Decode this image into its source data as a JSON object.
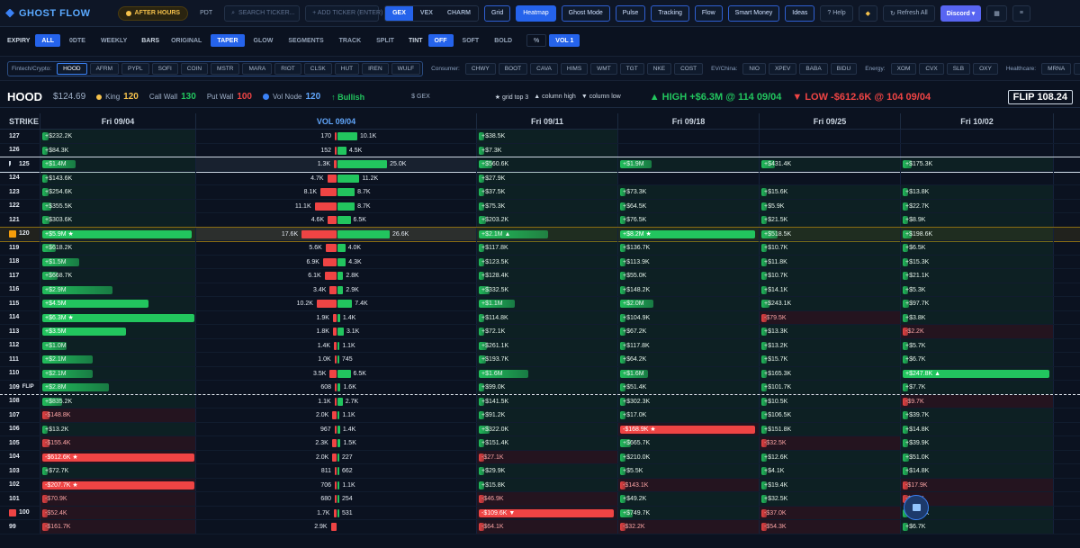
{
  "header": {
    "logo": "GHOST FLOW",
    "session_badge": "AFTER HOURS",
    "pdt": "PDT",
    "search_placeholder": "SEARCH TICKER...",
    "add_ticker": "+ ADD TICKER (ENTER)",
    "modes": [
      "GEX",
      "VEX",
      "CHARM"
    ],
    "active_mode": "GEX",
    "views": [
      "Grid",
      "Heatmap",
      "Ghost Mode",
      "Pulse",
      "Tracking",
      "Flow",
      "Smart Money",
      "Ideas"
    ],
    "active_view": "Heatmap",
    "help": "? Help",
    "refresh": "Refresh All",
    "discord": "Discord ▾"
  },
  "controls": {
    "expiry_label": "EXPIRY",
    "expiry": [
      "ALL",
      "0DTE",
      "WEEKLY"
    ],
    "bars_label": "BARS",
    "bars": [
      "ORIGINAL",
      "TAPER",
      "GLOW",
      "SEGMENTS",
      "TRACK",
      "SPLIT"
    ],
    "tint_label": "TINT",
    "tint": [
      "OFF",
      "SOFT",
      "BOLD"
    ],
    "pct": "%",
    "vol": "VOL 1"
  },
  "watchlist": {
    "fintech_label": "Fintech/Crypto:",
    "fintech": [
      "HOOD",
      "AFRM",
      "PYPL",
      "SOFI",
      "COIN",
      "MSTR",
      "MARA",
      "RIOT",
      "CLSK",
      "HUT",
      "IREN",
      "WULF"
    ],
    "consumer_label": "Consumer:",
    "consumer": [
      "CHWY",
      "BOOT",
      "CAVA",
      "HIMS",
      "WMT",
      "TGT",
      "NKE",
      "COST"
    ],
    "ev_label": "EV/China:",
    "ev": [
      "NIO",
      "XPEV",
      "BABA",
      "BIDU"
    ],
    "energy_label": "Energy:",
    "energy": [
      "XOM",
      "CVX",
      "SLB",
      "OXY"
    ],
    "health_label": "Healthcare:",
    "health": [
      "MRNA",
      "PFE"
    ]
  },
  "info": {
    "symbol": "HOOD",
    "price": "$124.69",
    "king_label": "King",
    "king": "120",
    "call_wall_label": "Call Wall",
    "call_wall": "130",
    "put_wall_label": "Put Wall",
    "put_wall": "100",
    "vol_node_label": "Vol Node",
    "vol_node": "120",
    "sentiment": "↑ Bullish",
    "gex_label": "$ GEX",
    "legend": [
      "★ grid top 3",
      "▲ column high",
      "▼ column low"
    ],
    "high": "▲ HIGH +$6.3M @ 114 09/04",
    "low": "▼ LOW -$612.6K @ 104 09/04",
    "flip": "FLIP 108.24"
  },
  "columns": {
    "strike": "STRIKE",
    "gex": "Fri 09/04",
    "vol": "VOL 09/04",
    "dates": [
      "Fri 09/11",
      "Fri 09/18",
      "Fri 09/25",
      "Fri 10/02"
    ]
  },
  "rows": [
    {
      "strike": "127",
      "gex": "+$232.2K",
      "gv": 0.04,
      "put": "170",
      "pv": 0.006,
      "call": "10.1K",
      "cv": 0.38,
      "d": [
        "+$38.5K",
        "",
        "",
        ""
      ],
      "dv": [
        0.02,
        0,
        0,
        0
      ]
    },
    {
      "strike": "126",
      "gex": "+$84.3K",
      "gv": 0.02,
      "put": "152",
      "pv": 0.006,
      "call": "4.5K",
      "cv": 0.17,
      "d": [
        "+$7.3K",
        "",
        "",
        ""
      ],
      "dv": [
        0.01,
        0,
        0,
        0
      ]
    },
    {
      "strike": "125",
      "gex": "+$1.4M",
      "gv": 0.22,
      "put": "1.3K",
      "pv": 0.05,
      "call": "25.0K",
      "cv": 0.95,
      "d": [
        "+$560.6K",
        "+$1.9M",
        "+$431.4K",
        "+$175.3K"
      ],
      "dv": [
        0.1,
        0.23,
        0.1,
        0.06
      ],
      "spot": true
    },
    {
      "strike": "124",
      "gex": "+$143.6K",
      "gv": 0.03,
      "put": "4.7K",
      "pv": 0.18,
      "call": "11.2K",
      "cv": 0.42,
      "d": [
        "+$27.9K",
        "",
        "",
        ""
      ],
      "dv": [
        0.01,
        0,
        0,
        0
      ]
    },
    {
      "strike": "123",
      "gex": "+$254.6K",
      "gv": 0.04,
      "put": "8.1K",
      "pv": 0.31,
      "call": "8.7K",
      "cv": 0.33,
      "d": [
        "+$37.5K",
        "+$73.3K",
        "+$15.6K",
        "+$13.8K"
      ],
      "dv": [
        0.02,
        0.03,
        0.02,
        0.02
      ]
    },
    {
      "strike": "122",
      "gex": "+$355.5K",
      "gv": 0.06,
      "put": "11.1K",
      "pv": 0.42,
      "call": "8.7K",
      "cv": 0.33,
      "d": [
        "+$75.3K",
        "+$64.5K",
        "+$5.9K",
        "+$22.7K"
      ],
      "dv": [
        0.02,
        0.02,
        0.01,
        0.02
      ]
    },
    {
      "strike": "121",
      "gex": "+$303.6K",
      "gv": 0.05,
      "put": "4.6K",
      "pv": 0.17,
      "call": "6.5K",
      "cv": 0.25,
      "d": [
        "+$203.2K",
        "+$76.5K",
        "+$21.5K",
        "+$8.9K"
      ],
      "dv": [
        0.05,
        0.03,
        0.02,
        0.01
      ]
    },
    {
      "strike": "120",
      "gex": "+$5.9M ★",
      "gv": 0.98,
      "put": "17.6K",
      "pv": 0.67,
      "call": "26.6K",
      "cv": 1.0,
      "d": [
        "+$2.1M ▲",
        "+$8.2M ★",
        "+$518.5K",
        "+$198.6K"
      ],
      "dv": [
        0.5,
        0.98,
        0.12,
        0.06
      ],
      "king": true
    },
    {
      "strike": "119",
      "gex": "+$618.2K",
      "gv": 0.09,
      "put": "5.6K",
      "pv": 0.21,
      "call": "4.0K",
      "cv": 0.15,
      "d": [
        "+$117.8K",
        "+$136.7K",
        "+$10.7K",
        "+$6.5K"
      ],
      "dv": [
        0.03,
        0.03,
        0.01,
        0.01
      ]
    },
    {
      "strike": "118",
      "gex": "+$1.5M",
      "gv": 0.24,
      "put": "6.9K",
      "pv": 0.26,
      "call": "4.3K",
      "cv": 0.16,
      "d": [
        "+$123.5K",
        "+$113.9K",
        "+$11.8K",
        "+$15.3K"
      ],
      "dv": [
        0.03,
        0.03,
        0.01,
        0.02
      ]
    },
    {
      "strike": "117",
      "gex": "+$668.7K",
      "gv": 0.1,
      "put": "6.1K",
      "pv": 0.23,
      "call": "2.8K",
      "cv": 0.11,
      "d": [
        "+$128.4K",
        "+$55.0K",
        "+$10.7K",
        "+$21.1K"
      ],
      "dv": [
        0.03,
        0.02,
        0.01,
        0.02
      ]
    },
    {
      "strike": "116",
      "gex": "+$2.9M",
      "gv": 0.46,
      "put": "3.4K",
      "pv": 0.13,
      "call": "2.9K",
      "cv": 0.11,
      "d": [
        "+$332.5K",
        "+$148.2K",
        "+$14.1K",
        "+$5.3K"
      ],
      "dv": [
        0.08,
        0.04,
        0.01,
        0.01
      ]
    },
    {
      "strike": "115",
      "gex": "+$4.5M",
      "gv": 0.7,
      "put": "10.2K",
      "pv": 0.38,
      "call": "7.4K",
      "cv": 0.28,
      "d": [
        "+$1.1M",
        "+$2.0M",
        "+$243.1K",
        "+$97.7K"
      ],
      "dv": [
        0.26,
        0.24,
        0.06,
        0.04
      ]
    },
    {
      "strike": "114",
      "gex": "+$6.3M ★",
      "gv": 1.0,
      "put": "1.9K",
      "pv": 0.07,
      "call": "1.4K",
      "cv": 0.05,
      "d": [
        "+$114.8K",
        "+$104.9K",
        "-$79.5K",
        "+$3.8K"
      ],
      "dv": [
        0.03,
        0.03,
        -0.04,
        0.01
      ]
    },
    {
      "strike": "113",
      "gex": "+$3.5M",
      "gv": 0.55,
      "put": "1.8K",
      "pv": 0.07,
      "call": "3.1K",
      "cv": 0.12,
      "d": [
        "+$72.1K",
        "+$67.2K",
        "+$13.3K",
        "-$2.2K"
      ],
      "dv": [
        0.02,
        0.02,
        0.01,
        -0.01
      ]
    },
    {
      "strike": "112",
      "gex": "+$1.0M",
      "gv": 0.16,
      "put": "1.4K",
      "pv": 0.05,
      "call": "1.1K",
      "cv": 0.04,
      "d": [
        "+$261.1K",
        "+$117.8K",
        "+$13.2K",
        "+$5.7K"
      ],
      "dv": [
        0.06,
        0.03,
        0.01,
        0.01
      ]
    },
    {
      "strike": "111",
      "gex": "+$2.1M",
      "gv": 0.33,
      "put": "1.0K",
      "pv": 0.04,
      "call": "745",
      "cv": 0.03,
      "d": [
        "+$193.7K",
        "+$64.2K",
        "+$15.7K",
        "+$6.7K"
      ],
      "dv": [
        0.05,
        0.02,
        0.01,
        0.01
      ]
    },
    {
      "strike": "110",
      "gex": "+$2.1M",
      "gv": 0.33,
      "put": "3.5K",
      "pv": 0.13,
      "call": "6.5K",
      "cv": 0.25,
      "d": [
        "+$1.6M",
        "+$1.6M",
        "+$165.3K",
        "+$247.8K ▲"
      ],
      "dv": [
        0.36,
        0.2,
        0.04,
        0.98
      ]
    },
    {
      "strike": "109",
      "flip": "FLIP",
      "gex": "+$2.8M",
      "gv": 0.44,
      "put": "608",
      "pv": 0.02,
      "call": "1.6K",
      "cv": 0.06,
      "d": [
        "+$99.0K",
        "+$51.4K",
        "+$101.7K",
        "+$7.7K"
      ],
      "dv": [
        0.03,
        0.02,
        0.03,
        0.01
      ],
      "flipline": true
    },
    {
      "strike": "108",
      "gex": "+$835.2K",
      "gv": 0.13,
      "put": "1.1K",
      "pv": 0.04,
      "call": "2.7K",
      "cv": 0.1,
      "d": [
        "+$141.5K",
        "+$302.3K",
        "+$10.5K",
        "-$9.7K"
      ],
      "dv": [
        0.03,
        0.04,
        0.01,
        -0.02
      ]
    },
    {
      "strike": "107",
      "gex": "-$148.8K",
      "gv": -0.05,
      "put": "2.0K",
      "pv": 0.08,
      "call": "1.1K",
      "cv": 0.04,
      "d": [
        "+$91.2K",
        "+$17.0K",
        "+$106.5K",
        "+$39.7K"
      ],
      "dv": [
        0.02,
        0.01,
        0.03,
        0.03
      ]
    },
    {
      "strike": "106",
      "gex": "+$13.2K",
      "gv": 0.01,
      "put": "967",
      "pv": 0.04,
      "call": "1.4K",
      "cv": 0.05,
      "d": [
        "+$322.0K",
        "-$168.9K ★",
        "+$151.8K",
        "+$14.8K"
      ],
      "dv": [
        0.08,
        -0.98,
        0.04,
        0.01
      ]
    },
    {
      "strike": "105",
      "gex": "-$155.4K",
      "gv": -0.05,
      "put": "2.3K",
      "pv": 0.09,
      "call": "1.5K",
      "cv": 0.06,
      "d": [
        "+$151.4K",
        "+$665.7K",
        "-$32.5K",
        "+$39.9K"
      ],
      "dv": [
        0.04,
        0.08,
        -0.02,
        0.03
      ]
    },
    {
      "strike": "104",
      "gex": "-$612.6K ★",
      "gv": -1.0,
      "put": "2.0K",
      "pv": 0.08,
      "call": "227",
      "cv": 0.01,
      "d": [
        "-$27.1K",
        "+$210.0K",
        "+$12.6K",
        "+$51.0K"
      ],
      "dv": [
        -0.02,
        0.03,
        0.01,
        0.04
      ]
    },
    {
      "strike": "103",
      "gex": "+$72.7K",
      "gv": 0.02,
      "put": "811",
      "pv": 0.03,
      "call": "662",
      "cv": 0.02,
      "d": [
        "+$29.9K",
        "+$5.5K",
        "+$4.1K",
        "+$14.8K"
      ],
      "dv": [
        0.02,
        0.01,
        0.01,
        0.01
      ]
    },
    {
      "strike": "102",
      "gex": "-$207.7K ★",
      "gv": -1.0,
      "put": "706",
      "pv": 0.03,
      "call": "1.1K",
      "cv": 0.04,
      "d": [
        "+$15.8K",
        "-$143.1K",
        "+$19.4K",
        "-$17.9K"
      ],
      "dv": [
        0.01,
        -0.04,
        0.01,
        -0.02
      ]
    },
    {
      "strike": "101",
      "gex": "-$70.9K",
      "gv": -0.03,
      "put": "680",
      "pv": 0.03,
      "call": "254",
      "cv": 0.01,
      "d": [
        "-$46.9K",
        "+$49.2K",
        "+$32.5K",
        "-$1.8K"
      ],
      "dv": [
        -0.02,
        0.02,
        0.02,
        -0.01
      ]
    },
    {
      "strike": "100",
      "gex": "-$52.4K",
      "gv": -0.02,
      "put": "1.7K",
      "pv": 0.06,
      "call": "531",
      "cv": 0.02,
      "d": [
        "-$109.6K ▼",
        "+$749.7K",
        "-$37.0K",
        "+$29.5K"
      ],
      "dv": [
        -0.98,
        0.09,
        -0.03,
        0.02
      ],
      "low": true
    },
    {
      "strike": "99",
      "gex": "-$161.7K",
      "gv": -0.04,
      "put": "2.9K",
      "pv": 0.11,
      "call": "",
      "cv": 0,
      "d": [
        "-$64.1K",
        "-$32.2K",
        "-$54.3K",
        "+$6.7K"
      ],
      "dv": [
        -0.03,
        -0.02,
        -0.03,
        0.01
      ]
    }
  ]
}
